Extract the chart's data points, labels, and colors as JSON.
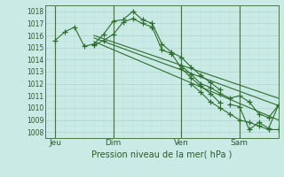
{
  "background_color": "#caeae6",
  "grid_major_color": "#aed4d0",
  "grid_minor_color": "#c0e0dc",
  "line_color": "#2d6e2d",
  "xlabel": "Pression niveau de la mer( hPa )",
  "ylim": [
    1007.5,
    1018.5
  ],
  "yticks": [
    1008,
    1009,
    1010,
    1011,
    1012,
    1013,
    1014,
    1015,
    1016,
    1017,
    1018
  ],
  "xlim": [
    0,
    12
  ],
  "xtick_labels": [
    "Jeu",
    "Dim",
    "Ven",
    "Sam"
  ],
  "xtick_positions": [
    0.5,
    3.5,
    7.0,
    10.0
  ],
  "vline_positions": [
    0.5,
    3.5,
    7.0,
    10.0
  ],
  "series": [
    {
      "x": [
        0.5,
        1.0,
        1.5,
        2.0,
        2.5,
        3.0,
        3.5,
        4.0,
        4.5,
        5.0,
        5.5,
        6.0,
        6.5,
        7.0,
        7.5,
        8.0,
        8.5,
        9.0
      ],
      "y": [
        1015.6,
        1016.3,
        1016.7,
        1015.1,
        1015.3,
        1016.1,
        1017.2,
        1017.3,
        1018.0,
        1017.3,
        1017.0,
        1015.3,
        1014.6,
        1014.2,
        1013.4,
        1012.7,
        1012.1,
        1011.5
      ],
      "marker": true
    },
    {
      "x": [
        2.5,
        3.0,
        3.5,
        4.0,
        4.5,
        5.0,
        5.5,
        6.0,
        6.5,
        7.0,
        7.5,
        8.0,
        8.5,
        9.0
      ],
      "y": [
        1015.2,
        1015.6,
        1016.1,
        1017.1,
        1017.4,
        1017.0,
        1016.7,
        1014.8,
        1014.5,
        1013.3,
        1012.5,
        1011.8,
        1011.2,
        1010.4
      ],
      "marker": true
    },
    {
      "x": [
        2.5,
        12.0
      ],
      "y": [
        1015.8,
        1010.2
      ],
      "marker": false
    },
    {
      "x": [
        2.5,
        12.0
      ],
      "y": [
        1015.5,
        1009.0
      ],
      "marker": false
    },
    {
      "x": [
        2.5,
        12.0
      ],
      "y": [
        1016.0,
        1010.8
      ],
      "marker": false
    },
    {
      "x": [
        7.0,
        7.5,
        8.0,
        8.5,
        9.0,
        9.5,
        10.0,
        10.5,
        11.0,
        11.5,
        12.0
      ],
      "y": [
        1013.5,
        1012.8,
        1012.0,
        1011.7,
        1011.2,
        1010.8,
        1011.0,
        1010.5,
        1009.5,
        1009.2,
        1010.2
      ],
      "marker": true
    },
    {
      "x": [
        7.5,
        8.0,
        8.5,
        9.0,
        9.5,
        10.0,
        10.5,
        11.0,
        11.5,
        12.0
      ],
      "y": [
        1012.0,
        1011.3,
        1010.5,
        1010.0,
        1009.5,
        1009.0,
        1008.8,
        1008.5,
        1008.2,
        1008.2
      ],
      "marker": true
    },
    {
      "x": [
        9.5,
        10.0,
        10.5,
        11.0,
        11.5,
        12.0
      ],
      "y": [
        1010.3,
        1010.1,
        1008.2,
        1008.8,
        1008.3,
        1010.2
      ],
      "marker": true
    }
  ]
}
